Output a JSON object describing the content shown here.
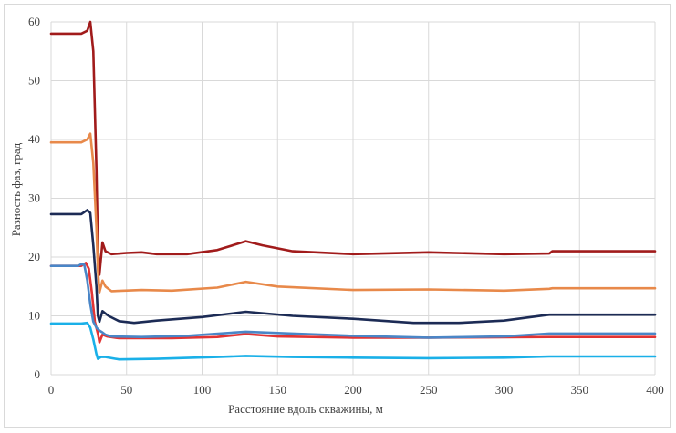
{
  "chart_data": {
    "type": "line",
    "title": "",
    "xlabel": "Расстояние вдоль скважины, м",
    "ylabel": "Разность фаз, град",
    "xlim": [
      0,
      400
    ],
    "ylim": [
      0,
      60
    ],
    "x_ticks": [
      "0",
      "50",
      "100",
      "150",
      "200",
      "250",
      "300",
      "350",
      "400"
    ],
    "y_ticks": [
      "0",
      "10",
      "20",
      "30",
      "40",
      "50",
      "60"
    ],
    "grid": true,
    "legend": "none",
    "series": [
      {
        "color": "#a11b1b",
        "points": [
          [
            0,
            58
          ],
          [
            20,
            58
          ],
          [
            24,
            58.5
          ],
          [
            26,
            60
          ],
          [
            28,
            55
          ],
          [
            30,
            35
          ],
          [
            31,
            22
          ],
          [
            32,
            17
          ],
          [
            34,
            22.5
          ],
          [
            36,
            21
          ],
          [
            40,
            20.5
          ],
          [
            50,
            20.7
          ],
          [
            60,
            20.8
          ],
          [
            70,
            20.5
          ],
          [
            90,
            20.5
          ],
          [
            110,
            21.2
          ],
          [
            129,
            22.7
          ],
          [
            140,
            22
          ],
          [
            160,
            21
          ],
          [
            200,
            20.5
          ],
          [
            250,
            20.8
          ],
          [
            300,
            20.5
          ],
          [
            330,
            20.6
          ],
          [
            332,
            21
          ],
          [
            400,
            21
          ]
        ]
      },
      {
        "color": "#e8894a",
        "points": [
          [
            0,
            39.5
          ],
          [
            20,
            39.5
          ],
          [
            24,
            40
          ],
          [
            26,
            41
          ],
          [
            28,
            36
          ],
          [
            30,
            25
          ],
          [
            31,
            18
          ],
          [
            32,
            14
          ],
          [
            34,
            16
          ],
          [
            36,
            15
          ],
          [
            40,
            14.2
          ],
          [
            60,
            14.4
          ],
          [
            80,
            14.3
          ],
          [
            110,
            14.8
          ],
          [
            129,
            15.8
          ],
          [
            150,
            15
          ],
          [
            200,
            14.4
          ],
          [
            250,
            14.5
          ],
          [
            300,
            14.3
          ],
          [
            330,
            14.6
          ],
          [
            332,
            14.7
          ],
          [
            400,
            14.7
          ]
        ]
      },
      {
        "color": "#1c2b55",
        "points": [
          [
            0,
            27.3
          ],
          [
            20,
            27.3
          ],
          [
            24,
            28
          ],
          [
            26,
            27.5
          ],
          [
            28,
            22
          ],
          [
            30,
            15
          ],
          [
            31,
            10
          ],
          [
            32,
            9
          ],
          [
            34,
            10.8
          ],
          [
            38,
            10
          ],
          [
            45,
            9.1
          ],
          [
            55,
            8.8
          ],
          [
            70,
            9.2
          ],
          [
            100,
            9.8
          ],
          [
            129,
            10.7
          ],
          [
            160,
            10
          ],
          [
            200,
            9.5
          ],
          [
            240,
            8.8
          ],
          [
            270,
            8.8
          ],
          [
            300,
            9.2
          ],
          [
            330,
            10.2
          ],
          [
            400,
            10.2
          ]
        ]
      },
      {
        "color": "#e23434",
        "points": [
          [
            0,
            18.5
          ],
          [
            20,
            18.5
          ],
          [
            23,
            19
          ],
          [
            25,
            18
          ],
          [
            27,
            14
          ],
          [
            29,
            9
          ],
          [
            31,
            7
          ],
          [
            32,
            5.5
          ],
          [
            34,
            6.8
          ],
          [
            37,
            6.5
          ],
          [
            45,
            6.2
          ],
          [
            80,
            6.2
          ],
          [
            110,
            6.4
          ],
          [
            129,
            6.9
          ],
          [
            150,
            6.5
          ],
          [
            200,
            6.3
          ],
          [
            250,
            6.3
          ],
          [
            330,
            6.4
          ],
          [
            400,
            6.4
          ]
        ]
      },
      {
        "color": "#4a86c7",
        "points": [
          [
            0,
            18.5
          ],
          [
            18,
            18.5
          ],
          [
            20,
            18.8
          ],
          [
            22,
            18.7
          ],
          [
            24,
            16
          ],
          [
            26,
            12
          ],
          [
            28,
            9
          ],
          [
            30,
            8
          ],
          [
            32,
            7.5
          ],
          [
            34,
            7.2
          ],
          [
            36,
            6.8
          ],
          [
            40,
            6.5
          ],
          [
            60,
            6.4
          ],
          [
            90,
            6.6
          ],
          [
            129,
            7.3
          ],
          [
            160,
            7
          ],
          [
            200,
            6.6
          ],
          [
            250,
            6.3
          ],
          [
            300,
            6.5
          ],
          [
            330,
            7
          ],
          [
            400,
            7
          ]
        ]
      },
      {
        "color": "#1ab0e8",
        "points": [
          [
            0,
            8.7
          ],
          [
            20,
            8.7
          ],
          [
            24,
            8.8
          ],
          [
            26,
            8
          ],
          [
            28,
            6
          ],
          [
            30,
            3.5
          ],
          [
            31,
            2.7
          ],
          [
            33,
            3
          ],
          [
            36,
            3
          ],
          [
            45,
            2.6
          ],
          [
            70,
            2.7
          ],
          [
            110,
            3
          ],
          [
            129,
            3.2
          ],
          [
            160,
            3
          ],
          [
            200,
            2.9
          ],
          [
            250,
            2.8
          ],
          [
            300,
            2.9
          ],
          [
            330,
            3.1
          ],
          [
            400,
            3.1
          ]
        ]
      }
    ]
  }
}
